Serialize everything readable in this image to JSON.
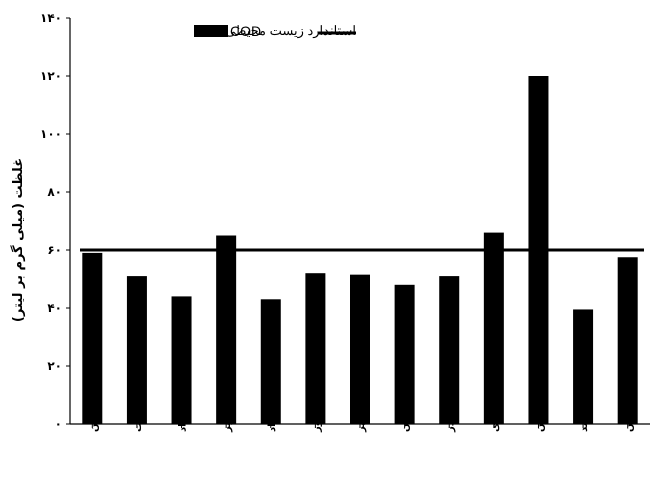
{
  "chart_data": {
    "type": "bar",
    "categories": [
      "فروردین",
      "اردیبهشت",
      "خرداد",
      "تیر",
      "مرداد",
      "شهریور",
      "مهر",
      "آبان",
      "آذر",
      "دی",
      "بهمن",
      "اسفند",
      "میانگین"
    ],
    "series": [
      {
        "name": "COD",
        "values": [
          59,
          51,
          44,
          65,
          43,
          52,
          51.5,
          48,
          51,
          66,
          120,
          39.5,
          57.5
        ]
      }
    ],
    "reference_line": {
      "name": "استاندارد زیست محیطی",
      "value": 60
    },
    "yticks": [
      "۰",
      "۲۰",
      "۴۰",
      "۶۰",
      "۸۰",
      "۱۰۰",
      "۱۲۰",
      "۱۴۰"
    ],
    "ytick_values": [
      0,
      20,
      40,
      60,
      80,
      100,
      120,
      140
    ],
    "ylim": [
      0,
      140
    ],
    "ylabel": "غلظت (میلی گرم بر لیتر)",
    "xlabel": "",
    "grid": false,
    "legend_position": "top",
    "colors": {
      "bar": "#000000",
      "line": "#000000"
    }
  }
}
